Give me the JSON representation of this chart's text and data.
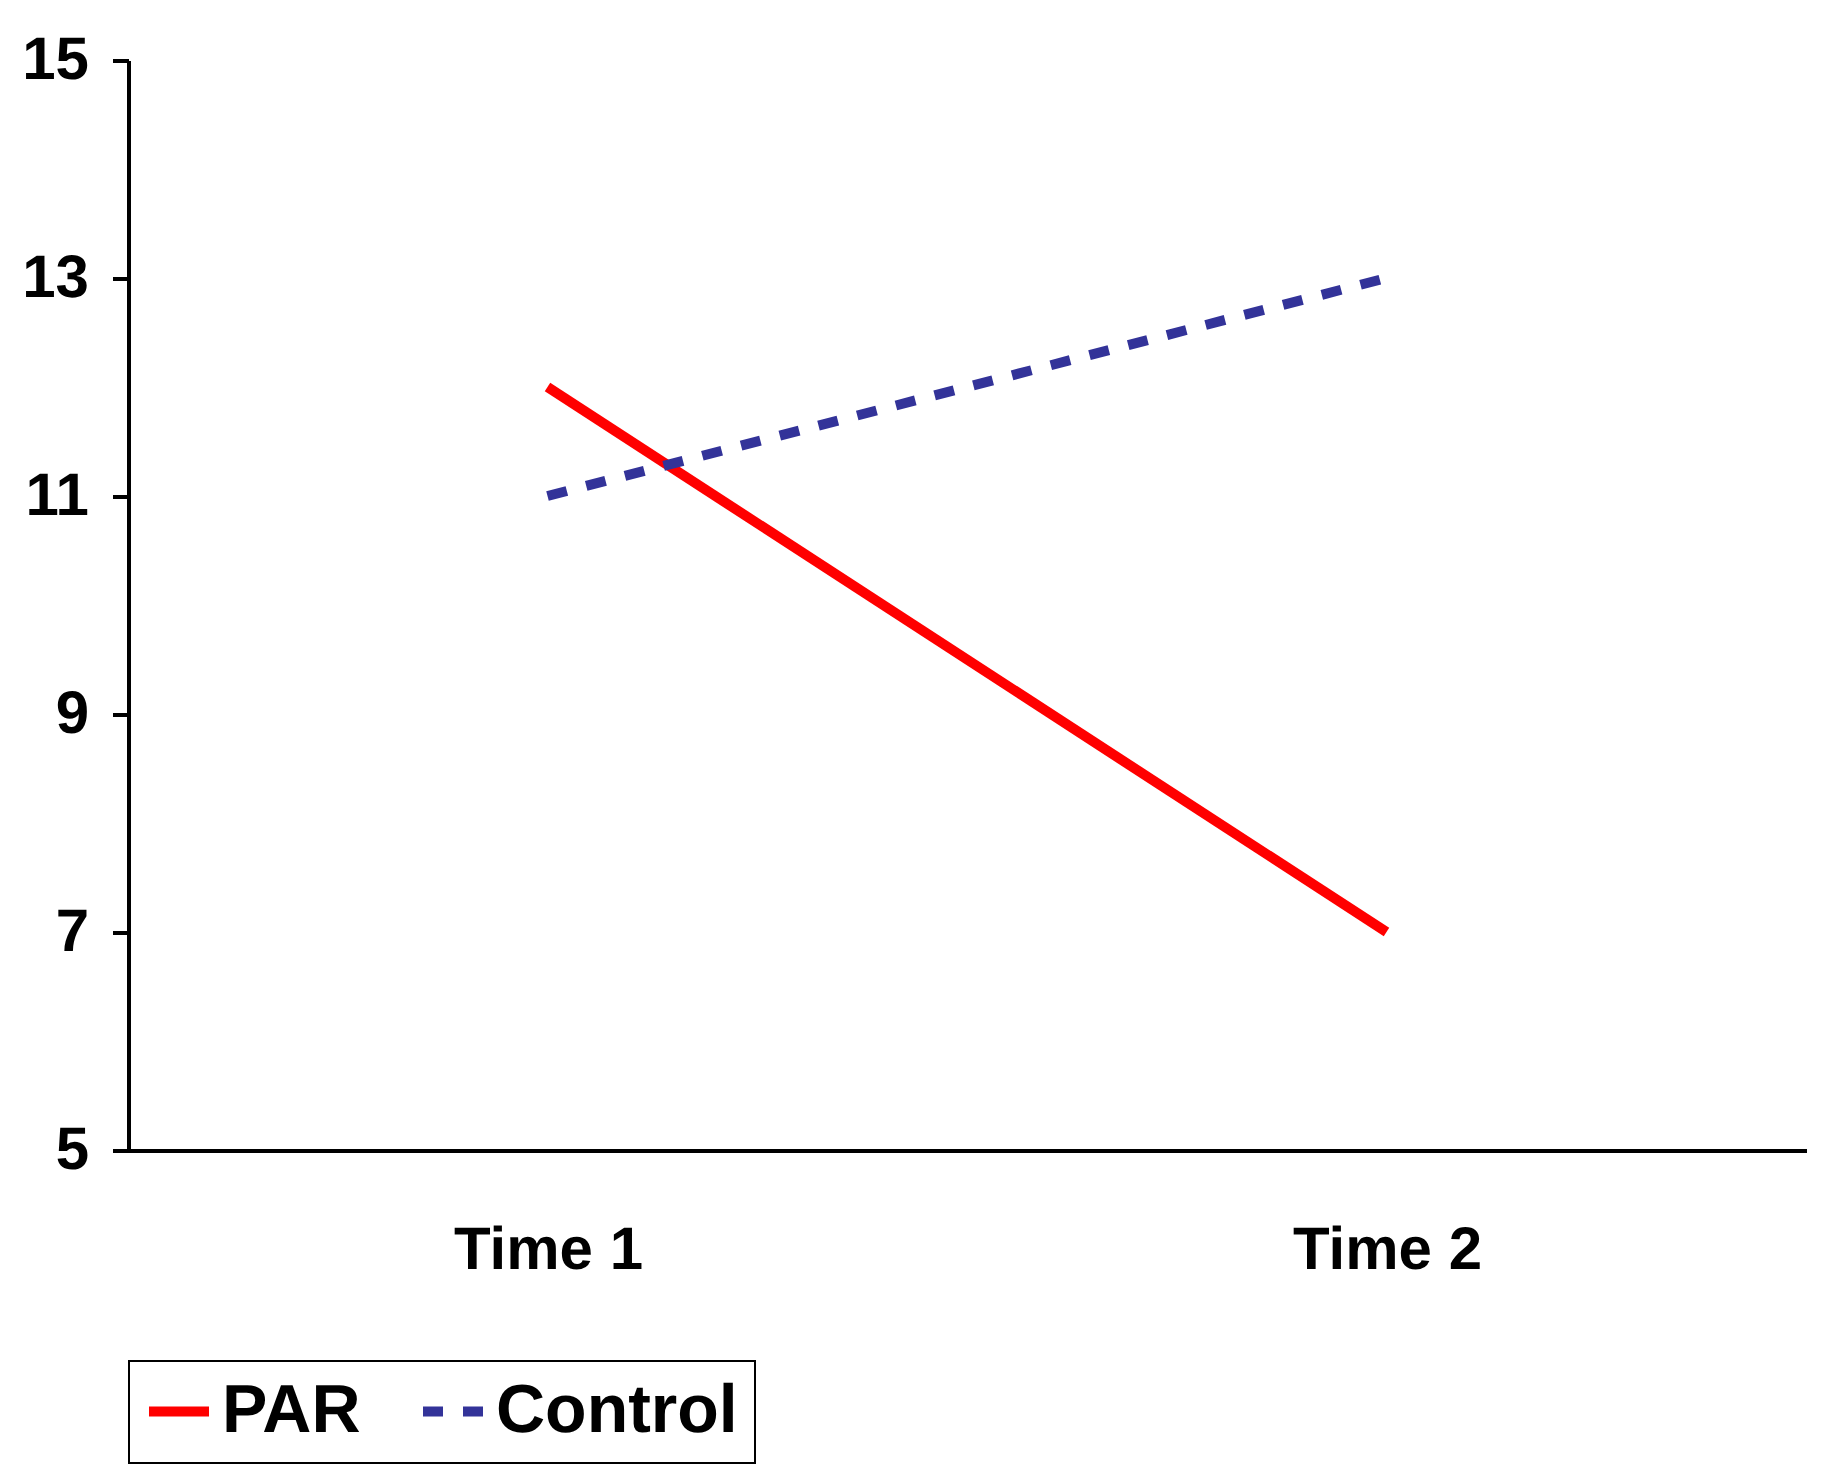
{
  "chart_data": {
    "type": "line",
    "categories": [
      "Time 1",
      "Time 2"
    ],
    "series": [
      {
        "name": "PAR",
        "color": "#ff0000",
        "values": [
          12,
          7
        ],
        "line_style": "solid"
      },
      {
        "name": "Control",
        "color": "#333399",
        "values": [
          11,
          13
        ],
        "line_style": "dashed"
      }
    ],
    "ylim": [
      5,
      15
    ],
    "yticks": [
      5,
      7,
      9,
      11,
      13,
      15
    ],
    "grid": false,
    "legend": "bottom",
    "marker": "none"
  }
}
